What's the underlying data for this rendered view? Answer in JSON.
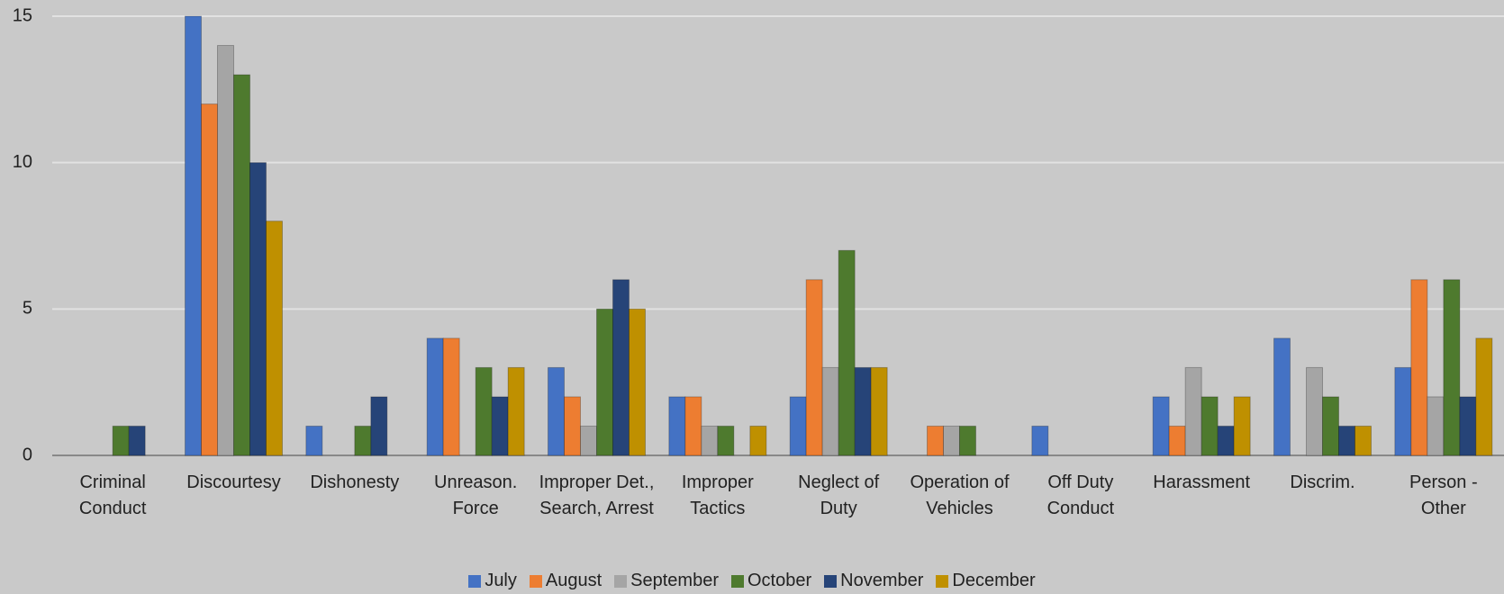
{
  "chart_data": {
    "type": "bar",
    "categories": [
      "Criminal Conduct",
      "Discourtesy",
      "Dishonesty",
      "Unreason. Force",
      "Improper Det., Search, Arrest",
      "Improper Tactics",
      "Neglect of Duty",
      "Operation of Vehicles",
      "Off Duty Conduct",
      "Harassment",
      "Discrim.",
      "Person - Other"
    ],
    "series": [
      {
        "name": "July",
        "color": "#4472c4",
        "values": [
          0,
          15,
          1,
          4,
          3,
          2,
          2,
          0,
          1,
          2,
          4,
          3
        ]
      },
      {
        "name": "August",
        "color": "#ed7d31",
        "values": [
          0,
          12,
          0,
          4,
          2,
          2,
          6,
          1,
          0,
          1,
          0,
          6
        ]
      },
      {
        "name": "September",
        "color": "#a5a5a5",
        "values": [
          0,
          14,
          0,
          0,
          1,
          1,
          3,
          1,
          0,
          3,
          3,
          2
        ]
      },
      {
        "name": "October",
        "color": "#4e7a2e",
        "values": [
          1,
          13,
          1,
          3,
          5,
          1,
          7,
          1,
          0,
          2,
          2,
          6
        ]
      },
      {
        "name": "November",
        "color": "#264478",
        "values": [
          1,
          10,
          2,
          2,
          6,
          0,
          3,
          0,
          0,
          1,
          1,
          2
        ]
      },
      {
        "name": "December",
        "color": "#bf9000",
        "values": [
          0,
          8,
          0,
          3,
          5,
          1,
          3,
          0,
          0,
          2,
          1,
          4
        ]
      }
    ],
    "ylim": [
      0,
      15
    ],
    "yticks": [
      0,
      5,
      10,
      15
    ],
    "grid": true,
    "legend": "bottom"
  }
}
